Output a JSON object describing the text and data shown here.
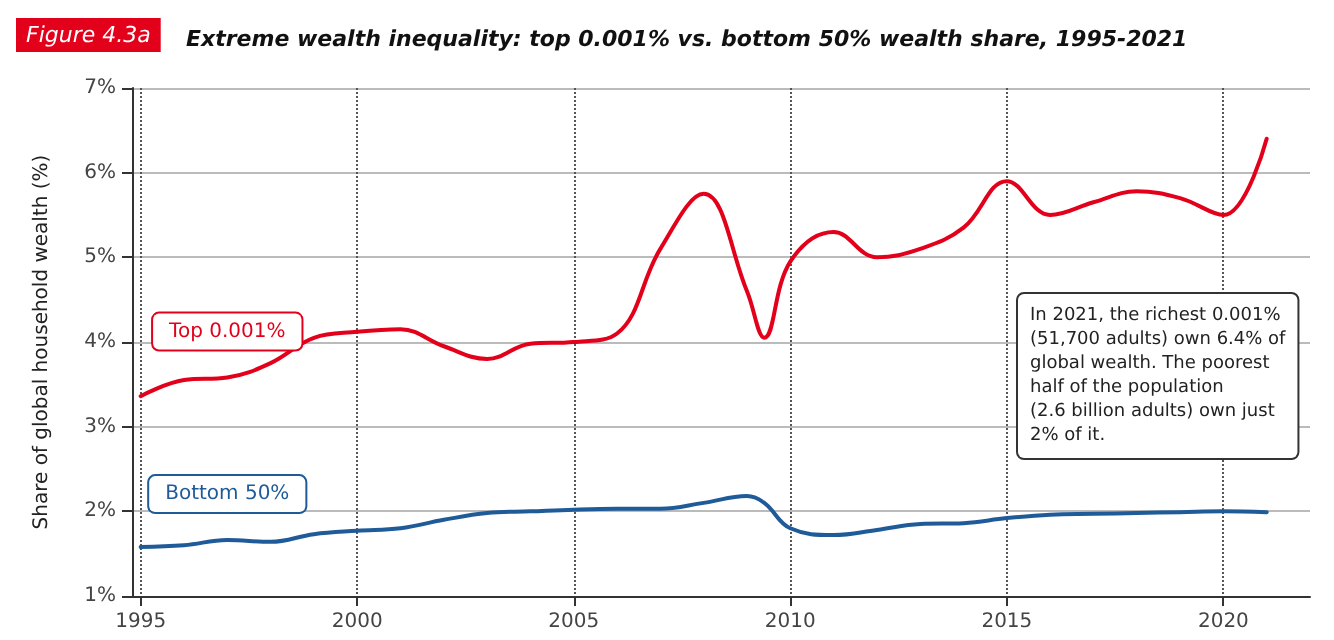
{
  "chart_data": {
    "type": "line",
    "title": "Extreme wealth inequality: top 0.001% vs. bottom 50% wealth share, 1995-2021",
    "ylabel": "Share of global household wealth (%)",
    "annotations": [
      "Figure 4.3a",
      "In 2021, the richest 0.001%\n(51,700 adults) own 6.4% of\nglobal wealth. The poorest\nhalf of the population\n(2.6 billion adults) own just\n2% of it."
    ],
    "x": [
      1995,
      1996,
      1997,
      1998,
      1999,
      2000,
      2001,
      2002,
      2003,
      2004,
      2005,
      2006,
      2007,
      2008,
      2009,
      2009.4,
      2010,
      2011,
      2012,
      2013,
      2014,
      2015,
      2016,
      2017,
      2018,
      2019,
      2020,
      2021
    ],
    "series": [
      {
        "name": "Top 0.001%",
        "color": "#e3001b",
        "values": [
          3.36,
          3.55,
          3.58,
          3.75,
          4.05,
          4.12,
          4.15,
          3.95,
          3.8,
          3.98,
          4.0,
          4.1,
          5.1,
          5.75,
          4.6,
          4.05,
          4.95,
          5.3,
          5.0,
          5.1,
          5.35,
          5.9,
          5.5,
          5.65,
          5.78,
          5.7,
          5.5,
          6.4
        ]
      },
      {
        "name": "Bottom 50%",
        "color": "#1f5b99",
        "values": [
          1.58,
          1.6,
          1.66,
          1.64,
          1.73,
          1.77,
          1.8,
          1.9,
          1.98,
          2.0,
          2.02,
          2.03,
          2.03,
          2.1,
          2.18,
          2.1,
          1.8,
          1.72,
          1.78,
          1.85,
          1.86,
          1.92,
          1.96,
          1.97,
          1.98,
          1.99,
          2.0,
          1.99
        ]
      }
    ],
    "xlim": [
      1994.8,
      2022
    ],
    "xticks": [
      1995,
      2000,
      2005,
      2010,
      2015,
      2020
    ],
    "ylim": [
      1,
      7
    ],
    "yticks": [
      {
        "value": 1,
        "label": "1%"
      },
      {
        "value": 2,
        "label": "2%"
      },
      {
        "value": 3,
        "label": "3%"
      },
      {
        "value": 4,
        "label": "4%"
      },
      {
        "value": 5,
        "label": "5%"
      },
      {
        "value": 6,
        "label": "6%"
      },
      {
        "value": 7,
        "label": "7%"
      }
    ],
    "grid": true,
    "legend": false,
    "marker": "none",
    "line_style": "solid"
  }
}
